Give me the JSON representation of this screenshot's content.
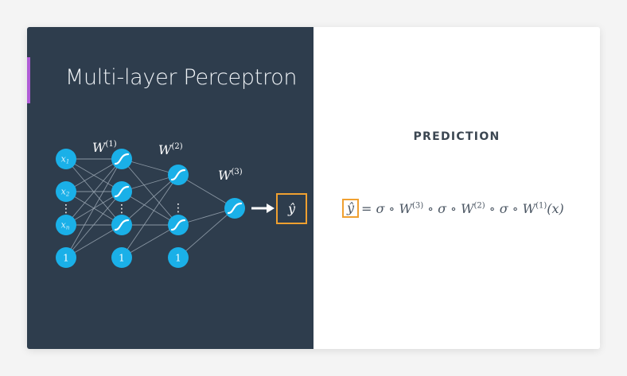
{
  "slide": {
    "title": "Multi-layer Perceptron",
    "accent_color": "#b05cd6",
    "left_background": "#2e3d4d",
    "right_background": "#ffffff"
  },
  "network": {
    "node_color": "#1ab0e8",
    "edge_color": "#9aa6b2",
    "output_box_color": "#f0a030",
    "weight_labels": {
      "w1": "W(1)",
      "w2": "W(2)",
      "w3": "W(3)"
    },
    "input_labels": [
      "x1",
      "x2",
      "xn",
      "1"
    ],
    "bias_label": "1",
    "ellipsis": "⋮",
    "output_label": "ŷ",
    "arrow_icon": "right-arrow-icon",
    "activation_icon": "sigmoid-icon"
  },
  "prediction": {
    "heading": "PREDICTION",
    "equation_lhs": "ŷ",
    "equation_rhs": "= σ ∘ W(3) ∘ σ ∘ W(2) ∘ σ ∘ W(1)(x)",
    "highlight_color": "#f0a030"
  }
}
